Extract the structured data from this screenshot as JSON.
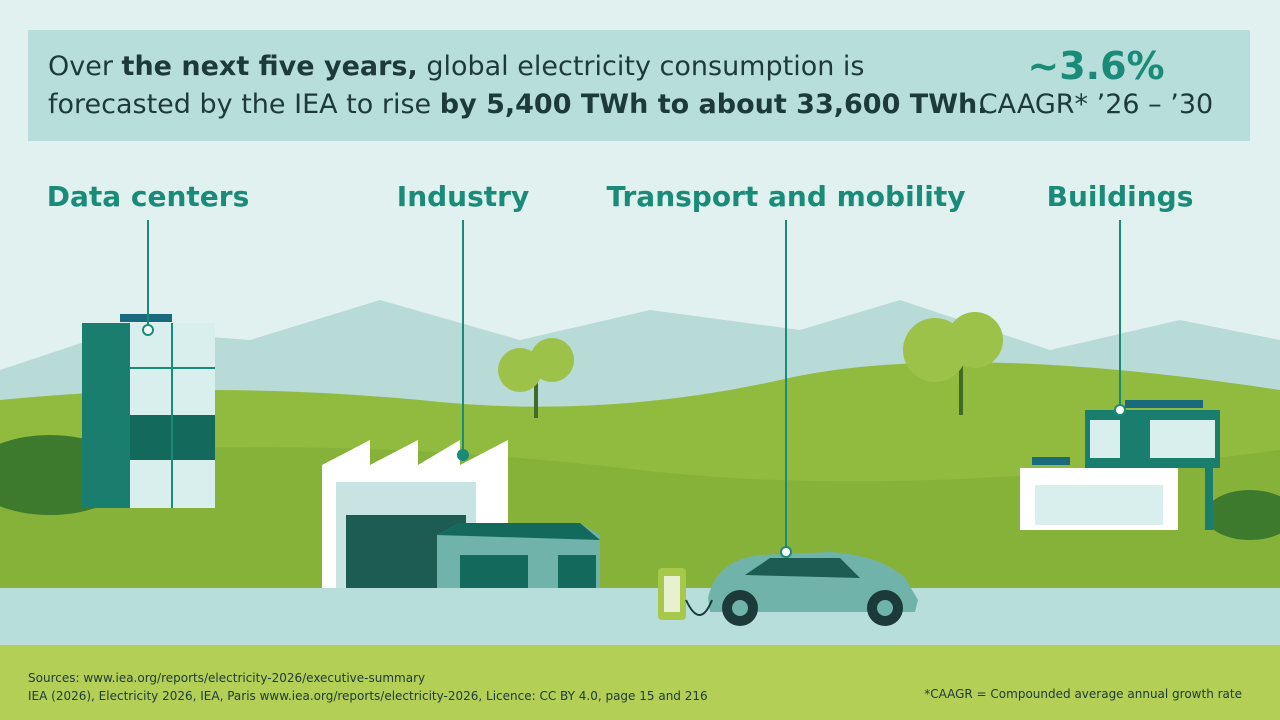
{
  "header": {
    "line1": [
      "Over",
      "the next five years,",
      "global electricity consumption is"
    ],
    "line2": [
      "forecasted by the IEA to rise",
      "by 5,400 TWh to about 33,600 TWh."
    ],
    "stat": "~3.6%",
    "stat_label": "CAAGR* ’26 – ’30"
  },
  "sectors": [
    "Data centers",
    "Industry",
    "Transport and mobility",
    "Buildings"
  ],
  "footer": {
    "sources": [
      "Sources: www.iea.org/reports/electricity-2026/executive-summary",
      "IEA (2026), Electricity 2026, IEA, Paris www.iea.org/reports/electricity-2026, Licence: CC BY 4.0, page 15 and 216"
    ],
    "note": "*CAAGR = Compounded average annual growth rate"
  }
}
